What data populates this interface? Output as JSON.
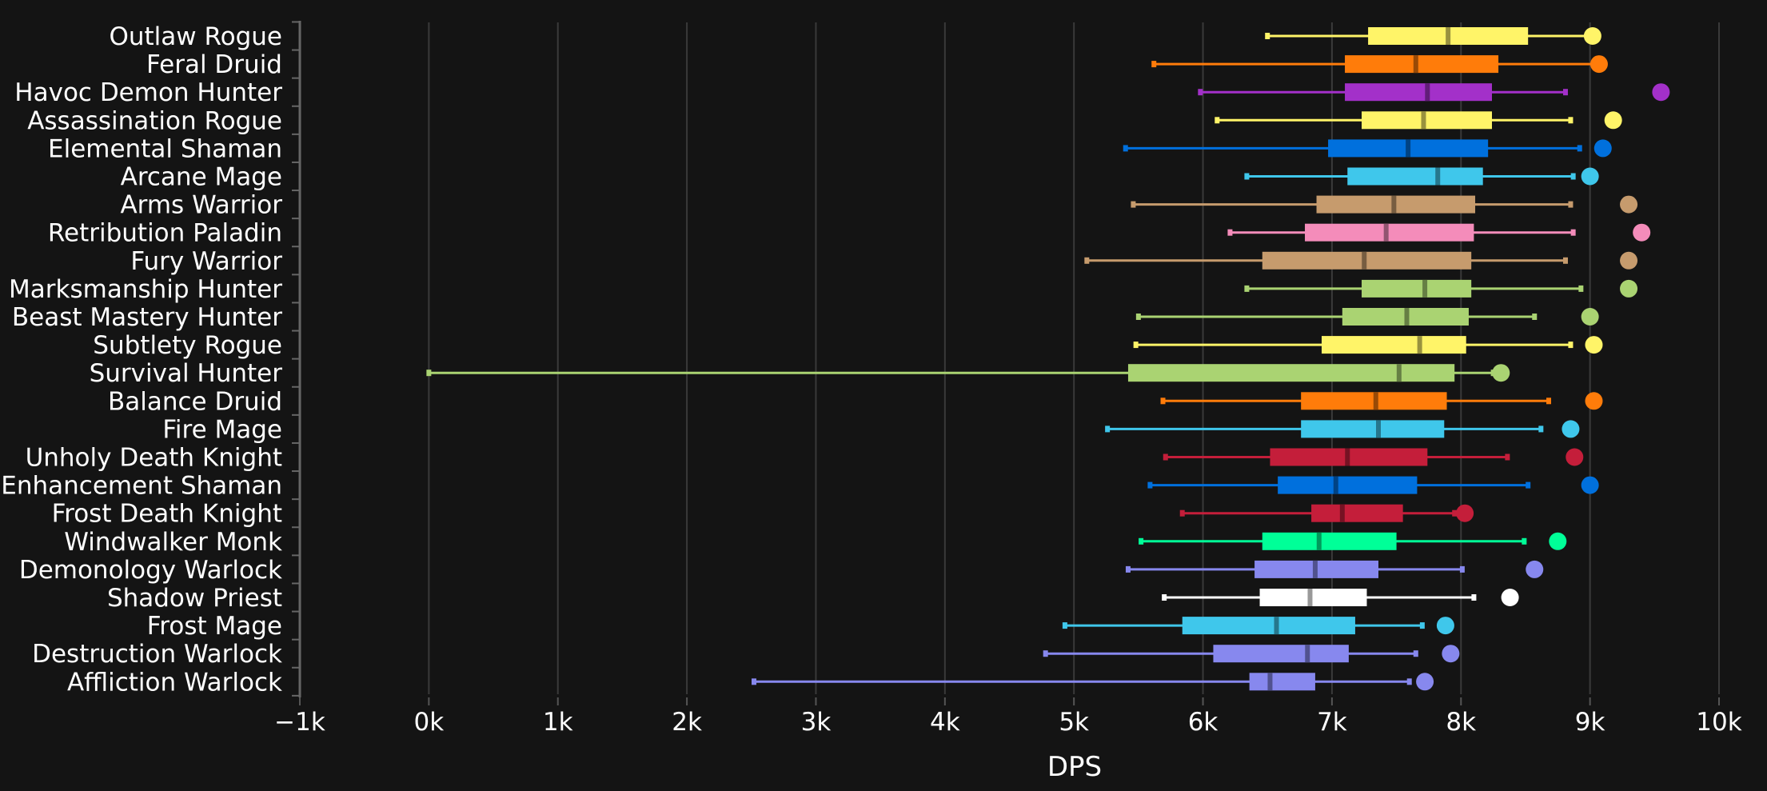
{
  "chart_data": {
    "type": "boxplot",
    "orientation": "horizontal",
    "xlabel": "DPS",
    "xlim": [
      -1000,
      10000
    ],
    "xticks": [
      -1000,
      0,
      1000,
      2000,
      3000,
      4000,
      5000,
      6000,
      7000,
      8000,
      9000,
      10000
    ],
    "xtick_labels": [
      "−1k",
      "0k",
      "1k",
      "2k",
      "3k",
      "4k",
      "5k",
      "6k",
      "7k",
      "8k",
      "9k",
      "10k"
    ],
    "grid": true,
    "series": [
      {
        "name": "Outlaw Rogue",
        "color": "#fff468",
        "min": 6500,
        "q1": 7280,
        "median": 7900,
        "q3": 8520,
        "max": 9000,
        "outlier": 9020
      },
      {
        "name": "Feral Druid",
        "color": "#ff7c0a",
        "min": 5620,
        "q1": 7100,
        "median": 7650,
        "q3": 8290,
        "max": 9050,
        "outlier": 9070
      },
      {
        "name": "Havoc Demon Hunter",
        "color": "#a330c9",
        "min": 5980,
        "q1": 7100,
        "median": 7740,
        "q3": 8240,
        "max": 8810,
        "outlier": 9550
      },
      {
        "name": "Assassination Rogue",
        "color": "#fff468",
        "min": 6110,
        "q1": 7230,
        "median": 7710,
        "q3": 8240,
        "max": 8850,
        "outlier": 9180
      },
      {
        "name": "Elemental Shaman",
        "color": "#0070dd",
        "min": 5400,
        "q1": 6970,
        "median": 7590,
        "q3": 8210,
        "max": 8920,
        "outlier": 9100
      },
      {
        "name": "Arcane Mage",
        "color": "#3fc7eb",
        "min": 6340,
        "q1": 7120,
        "median": 7820,
        "q3": 8170,
        "max": 8870,
        "outlier": 9000
      },
      {
        "name": "Arms Warrior",
        "color": "#c69b6d",
        "min": 5460,
        "q1": 6880,
        "median": 7480,
        "q3": 8110,
        "max": 8850,
        "outlier": 9300
      },
      {
        "name": "Retribution Paladin",
        "color": "#f48cba",
        "min": 6210,
        "q1": 6790,
        "median": 7420,
        "q3": 8100,
        "max": 8870,
        "outlier": 9400
      },
      {
        "name": "Fury Warrior",
        "color": "#c69b6d",
        "min": 5100,
        "q1": 6460,
        "median": 7250,
        "q3": 8080,
        "max": 8810,
        "outlier": 9300
      },
      {
        "name": "Marksmanship Hunter",
        "color": "#aad372",
        "min": 6340,
        "q1": 7230,
        "median": 7720,
        "q3": 8080,
        "max": 8930,
        "outlier": 9300
      },
      {
        "name": "Beast Mastery Hunter",
        "color": "#aad372",
        "min": 5500,
        "q1": 7080,
        "median": 7580,
        "q3": 8060,
        "max": 8570,
        "outlier": 9000
      },
      {
        "name": "Subtlety Rogue",
        "color": "#fff468",
        "min": 5480,
        "q1": 6920,
        "median": 7680,
        "q3": 8040,
        "max": 8850,
        "outlier": 9030
      },
      {
        "name": "Survival Hunter",
        "color": "#aad372",
        "min": 0,
        "q1": 5420,
        "median": 7520,
        "q3": 7950,
        "max": 8250,
        "outlier": 8310
      },
      {
        "name": "Balance Druid",
        "color": "#ff7c0a",
        "min": 5690,
        "q1": 6760,
        "median": 7340,
        "q3": 7890,
        "max": 8680,
        "outlier": 9030
      },
      {
        "name": "Fire Mage",
        "color": "#3fc7eb",
        "min": 5260,
        "q1": 6760,
        "median": 7360,
        "q3": 7870,
        "max": 8620,
        "outlier": 8850
      },
      {
        "name": "Unholy Death Knight",
        "color": "#c41e3a",
        "min": 5710,
        "q1": 6520,
        "median": 7120,
        "q3": 7740,
        "max": 8360,
        "outlier": 8880
      },
      {
        "name": "Enhancement Shaman",
        "color": "#0070dd",
        "min": 5590,
        "q1": 6580,
        "median": 7030,
        "q3": 7660,
        "max": 8520,
        "outlier": 9000
      },
      {
        "name": "Frost Death Knight",
        "color": "#c41e3a",
        "min": 5840,
        "q1": 6840,
        "median": 7080,
        "q3": 7550,
        "max": 7950,
        "outlier": 8030
      },
      {
        "name": "Windwalker Monk",
        "color": "#00ff98",
        "min": 5520,
        "q1": 6460,
        "median": 6900,
        "q3": 7500,
        "max": 8490,
        "outlier": 8750
      },
      {
        "name": "Demonology Warlock",
        "color": "#8788ee",
        "min": 5420,
        "q1": 6400,
        "median": 6870,
        "q3": 7360,
        "max": 8010,
        "outlier": 8570
      },
      {
        "name": "Shadow Priest",
        "color": "#ffffff",
        "min": 5700,
        "q1": 6440,
        "median": 6830,
        "q3": 7270,
        "max": 8100,
        "outlier": 8380
      },
      {
        "name": "Frost Mage",
        "color": "#3fc7eb",
        "min": 4930,
        "q1": 5840,
        "median": 6570,
        "q3": 7180,
        "max": 7700,
        "outlier": 7880
      },
      {
        "name": "Destruction Warlock",
        "color": "#8788ee",
        "min": 4780,
        "q1": 6080,
        "median": 6810,
        "q3": 7130,
        "max": 7650,
        "outlier": 7920
      },
      {
        "name": "Affliction Warlock",
        "color": "#8788ee",
        "min": 2520,
        "q1": 6360,
        "median": 6520,
        "q3": 6870,
        "max": 7600,
        "outlier": 7720
      }
    ]
  }
}
